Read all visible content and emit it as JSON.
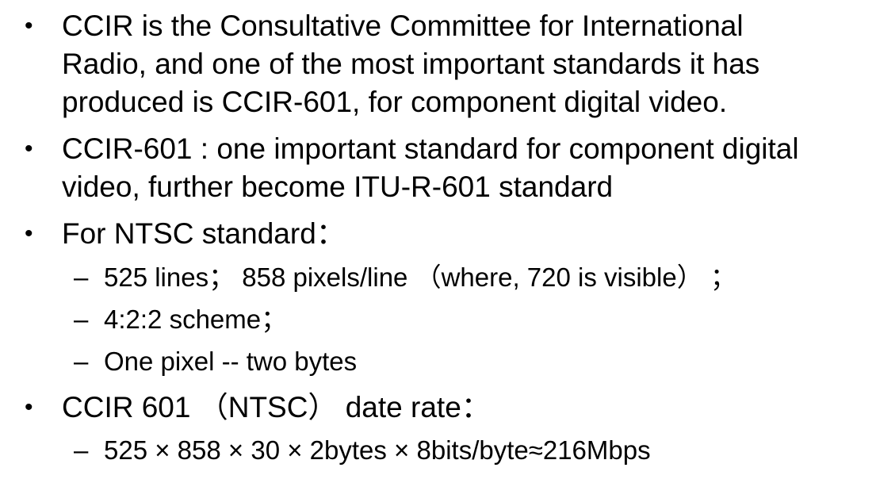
{
  "bullet_symbol": "•",
  "dash_symbol": "–",
  "items": [
    {
      "lines": [
        "CCIR is the Consultative Committee for International",
        "Radio, and one of the most important standards it has",
        "produced is CCIR-601, for component digital video."
      ]
    },
    {
      "lines": [
        "CCIR-601 : one important standard for component digital",
        "video, further become ITU-R-601 standard"
      ]
    },
    {
      "lines": [
        "For NTSC standard："
      ],
      "sub": [
        "525 lines； 858 pixels/line （where, 720 is visible） ；",
        "4:2:2 scheme；",
        "One pixel -- two bytes"
      ]
    },
    {
      "lines": [
        "CCIR 601 （NTSC） date rate："
      ],
      "sub": [
        "525 × 858 × 30 × 2bytes × 8bits/byte≈216Mbps"
      ]
    }
  ]
}
